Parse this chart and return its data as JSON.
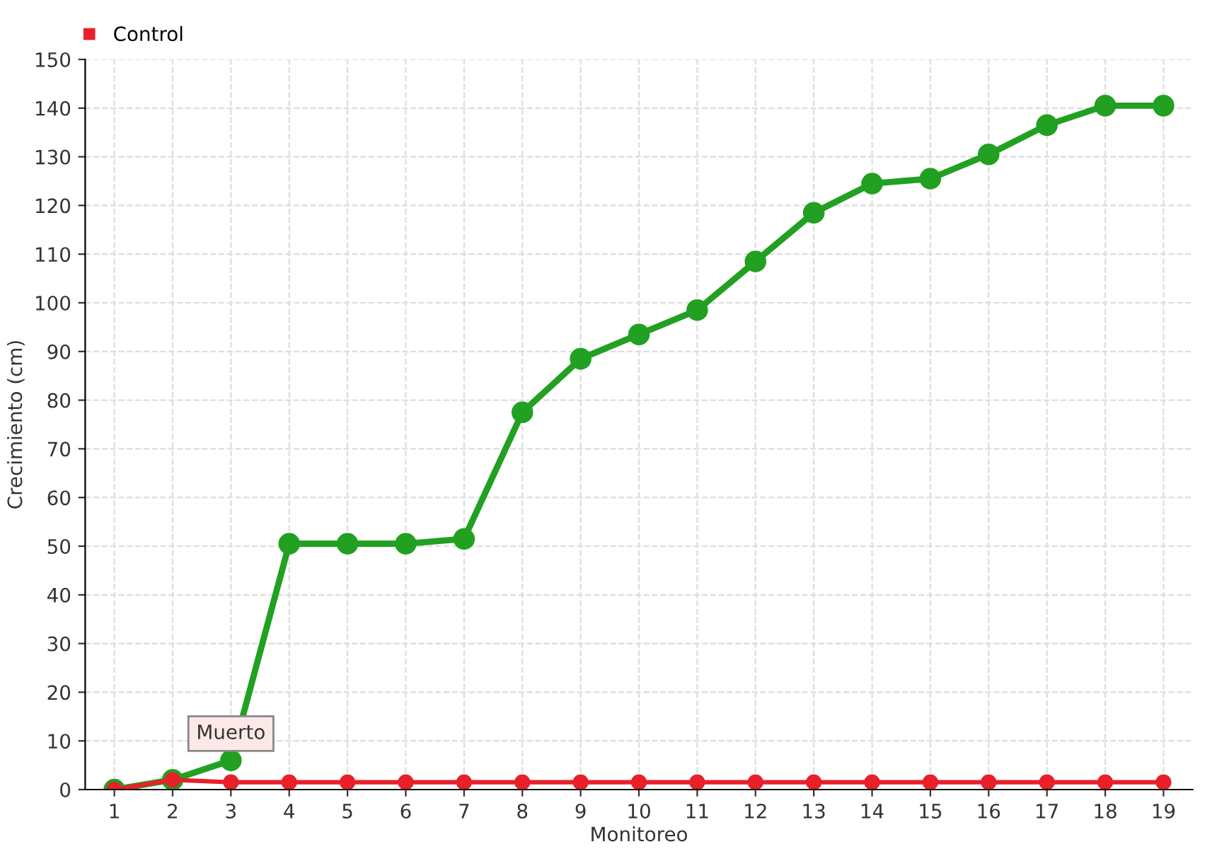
{
  "chart_data": {
    "type": "line",
    "xlabel": "Monitoreo",
    "ylabel": "Crecimiento (cm)",
    "categories": [
      "1",
      "2",
      "3",
      "4",
      "5",
      "6",
      "7",
      "8",
      "9",
      "10",
      "11",
      "12",
      "13",
      "14",
      "15",
      "16",
      "17",
      "18",
      "19"
    ],
    "series": [
      {
        "color": "#22a022",
        "values": [
          0,
          2,
          6,
          50.5,
          50.5,
          50.5,
          51.5,
          77.5,
          88.5,
          93.5,
          98.5,
          108.5,
          118.5,
          124.5,
          125.5,
          130.5,
          136.5,
          140.5,
          140.5
        ]
      },
      {
        "name": "Control",
        "color": "#e8202a",
        "values": [
          0,
          2,
          1.5,
          1.5,
          1.5,
          1.5,
          1.5,
          1.5,
          1.5,
          1.5,
          1.5,
          1.5,
          1.5,
          1.5,
          1.5,
          1.5,
          1.5,
          1.5,
          1.5
        ]
      }
    ],
    "ylim": [
      0,
      150
    ],
    "yticks": [
      0,
      10,
      20,
      30,
      40,
      50,
      60,
      70,
      80,
      90,
      100,
      110,
      120,
      130,
      140,
      150
    ],
    "annotations": [
      {
        "text": "Muerto",
        "x": "3",
        "y": 1.5
      }
    ],
    "grid": true,
    "legend": "top left",
    "marker": "circle",
    "line_style": "solid"
  }
}
